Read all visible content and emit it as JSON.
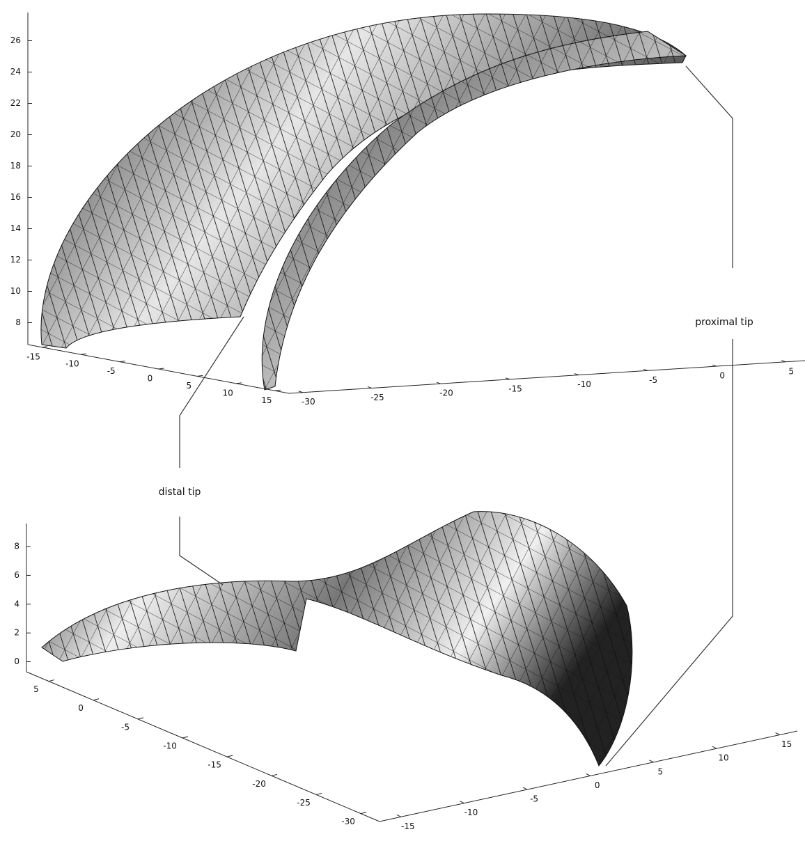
{
  "chart_data": [
    {
      "type": "surface",
      "xlim": [
        -16.8,
        16.8
      ],
      "xticks": [
        -15,
        -10,
        -5,
        0,
        5,
        10,
        15
      ],
      "ylim": [
        -31,
        6.4
      ],
      "yticks": [
        -30,
        -25,
        -20,
        -15,
        -10,
        -5,
        0,
        5
      ],
      "zlim": [
        6.6,
        27.8
      ],
      "zticks": [
        8,
        10,
        12,
        14,
        16,
        18,
        20,
        22,
        24,
        26
      ]
    },
    {
      "type": "surface",
      "xlim": [
        -16.7,
        16.4
      ],
      "xticks": [
        -15,
        -10,
        -5,
        0,
        5,
        10,
        15
      ],
      "ylim": [
        7.5,
        -32.1
      ],
      "yticks": [
        5,
        0,
        -5,
        -10,
        -15,
        -20,
        -25,
        -30
      ],
      "zlim": [
        -0.7,
        9.6
      ],
      "zticks": [
        0,
        2,
        4,
        6,
        8
      ]
    }
  ],
  "annotations": [
    "proximal tip",
    "distal tip"
  ]
}
